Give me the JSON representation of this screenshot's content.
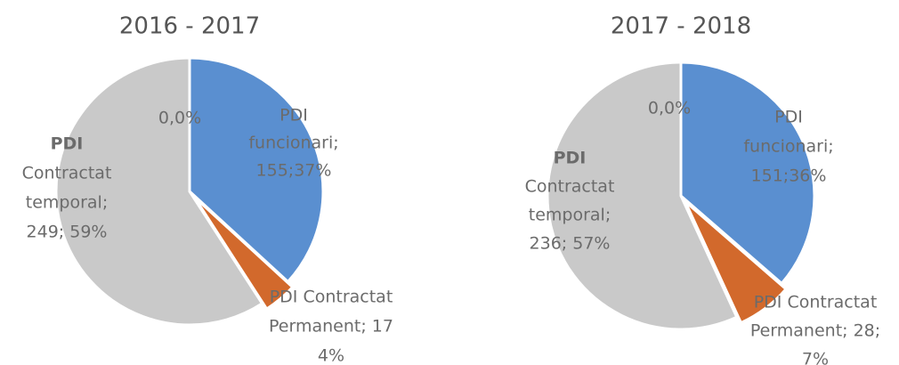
{
  "chart_data": [
    {
      "type": "pie",
      "title": "2016 - 2017",
      "categories": [
        "PDI funcionari",
        "PDI Contractat Permanent",
        "PDI Contractat temporal",
        null
      ],
      "values": [
        155,
        17,
        249,
        0
      ],
      "colors": [
        "#5a8fd0",
        "#d2692c",
        "#c9c9c9",
        "#999999"
      ],
      "data_labels": [
        [
          "PDI",
          "funcionari;",
          "155;37%"
        ],
        [
          "PDI Contractat",
          "Permanent; 17",
          "4%"
        ],
        [
          "PDI",
          "Contractat",
          "temporal;",
          "249; 59%"
        ],
        [
          "0,0%"
        ]
      ]
    },
    {
      "type": "pie",
      "title": "2017 - 2018",
      "categories": [
        "PDI funcionari",
        "PDI Contractat Permanent",
        "PDI Contractat temporal",
        null
      ],
      "values": [
        151,
        28,
        236,
        0
      ],
      "colors": [
        "#5a8fd0",
        "#d2692c",
        "#c9c9c9",
        "#999999"
      ],
      "data_labels": [
        [
          "PDI",
          "funcionari;",
          "151;36%"
        ],
        [
          "PDI Contractat",
          "Permanent; 28;",
          "7%"
        ],
        [
          "PDI",
          "Contractat",
          "temporal;",
          "236; 57%"
        ],
        [
          "0,0%"
        ]
      ]
    }
  ]
}
